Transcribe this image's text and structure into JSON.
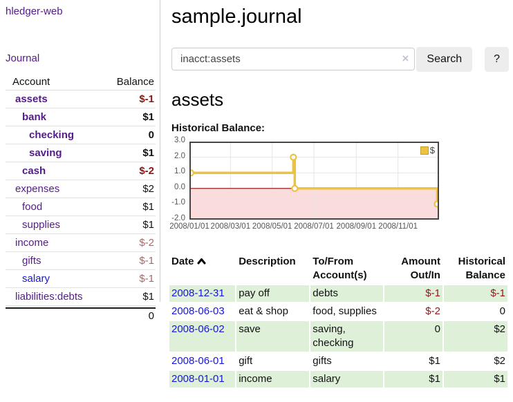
{
  "sidebar": {
    "brand": "hledger-web",
    "journal_link": "Journal",
    "headers": {
      "account": "Account",
      "balance": "Balance"
    },
    "accounts": [
      {
        "name": "assets",
        "depth": 1,
        "bold": true,
        "amount": "$-1",
        "amount_style": "neg-strong"
      },
      {
        "name": "bank",
        "depth": 2,
        "bold": true,
        "amount": "$1",
        "amount_style": "pos"
      },
      {
        "name": "checking",
        "depth": 3,
        "bold": true,
        "amount": "0",
        "amount_style": "pos"
      },
      {
        "name": "saving",
        "depth": 3,
        "bold": true,
        "amount": "$1",
        "amount_style": "pos"
      },
      {
        "name": "cash",
        "depth": 2,
        "bold": true,
        "amount": "$-2",
        "amount_style": "neg-strong"
      },
      {
        "name": "expenses",
        "depth": 1,
        "bold": false,
        "amount": "$2",
        "amount_style": "pos"
      },
      {
        "name": "food",
        "depth": 2,
        "bold": false,
        "amount": "$1",
        "amount_style": "pos"
      },
      {
        "name": "supplies",
        "depth": 2,
        "bold": false,
        "amount": "$1",
        "amount_style": "pos"
      },
      {
        "name": "income",
        "depth": 1,
        "bold": false,
        "amount": "$-2",
        "amount_style": "neg-soft"
      },
      {
        "name": "gifts",
        "depth": 2,
        "bold": false,
        "amount": "$-1",
        "amount_style": "neg-soft"
      },
      {
        "name": "salary",
        "depth": 2,
        "bold": false,
        "amount": "$-1",
        "amount_style": "neg-soft"
      },
      {
        "name": "liabilities:debts",
        "depth": 1,
        "bold": false,
        "amount": "$1",
        "amount_style": "pos"
      }
    ],
    "total": "0"
  },
  "header": {
    "title": "sample.journal"
  },
  "search": {
    "value": "inacct:assets",
    "clear_icon": "×",
    "button_label": "Search",
    "help_label": "?"
  },
  "account_page": {
    "heading": "assets",
    "chart_label": "Historical Balance:"
  },
  "chart_data": {
    "type": "line",
    "title": "Historical Balance:",
    "series": [
      {
        "name": "$",
        "color": "#edc240",
        "step": true,
        "points": [
          {
            "date": "2008-01-01",
            "value": 1
          },
          {
            "date": "2008-06-01",
            "value": 2
          },
          {
            "date": "2008-06-03",
            "value": 0
          },
          {
            "date": "2008-12-31",
            "value": -1
          }
        ]
      }
    ],
    "x_start": "2008-01-01",
    "x_end": "2008-12-31",
    "xticks": [
      "2008/01/01",
      "2008/03/01",
      "2008/05/01",
      "2008/07/01",
      "2008/09/01",
      "2008/11/01"
    ],
    "ylim": [
      -2.0,
      3.0
    ],
    "yticks": [
      3.0,
      2.0,
      1.0,
      0.0,
      -1.0,
      -2.0
    ],
    "grid": true,
    "zero_line_color": "#8b0000",
    "negative_fill": "#fadcdc",
    "legend": {
      "label": "$",
      "position": "top-right"
    }
  },
  "register": {
    "headers": {
      "date": "Date",
      "description": "Description",
      "accounts": "To/From Account(s)",
      "amount": "Amount Out/In",
      "balance": "Historical Balance"
    },
    "rows": [
      {
        "date": "2008-12-31",
        "description": "pay off",
        "accounts": "debts",
        "amount": "$-1",
        "balance": "$-1"
      },
      {
        "date": "2008-06-03",
        "description": "eat & shop",
        "accounts": "food, supplies",
        "amount": "$-2",
        "balance": "0"
      },
      {
        "date": "2008-06-02",
        "description": "save",
        "accounts": "saving, checking",
        "amount": "0",
        "balance": "$2"
      },
      {
        "date": "2008-06-01",
        "description": "gift",
        "accounts": "gifts",
        "amount": "$1",
        "balance": "$2"
      },
      {
        "date": "2008-01-01",
        "description": "income",
        "accounts": "salary",
        "amount": "$1",
        "balance": "$1"
      }
    ]
  },
  "colors": {
    "link_visited": "#551a8b",
    "link": "#1515dd",
    "negative_strong": "#8f1414",
    "negative_soft": "#aa6868",
    "negative_table": "#941616",
    "row_highlight": "#dff0d8",
    "chart_line": "#edc240",
    "chart_negative_fill": "#fadcdc",
    "chart_zero_line": "#8b0000"
  }
}
